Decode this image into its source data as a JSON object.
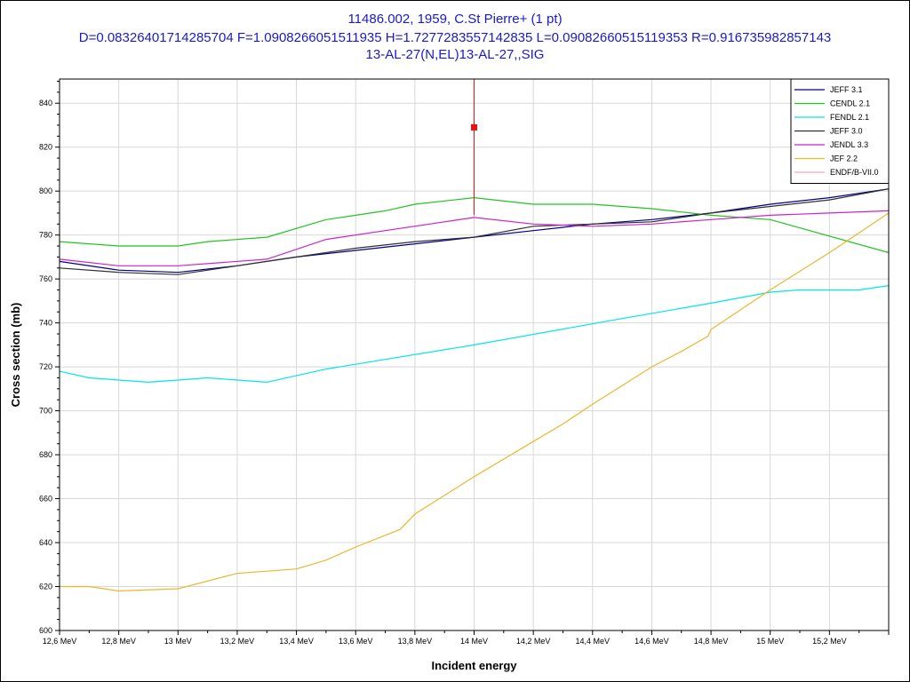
{
  "header": {
    "line1": "11486.002, 1959, C.St Pierre+ (1 pt)",
    "line2": "D=0.08326401714285704 F=1.0908266051511935 H=1.7277283557142835 L=0.09082660515119353 R=0.916735982857143",
    "line3": "13-AL-27(N,EL)13-AL-27,,SIG"
  },
  "chart_data": {
    "type": "line",
    "xlabel": "Incident energy",
    "ylabel": "Cross section (mb)",
    "xlim": [
      12.6,
      15.4
    ],
    "ylim": [
      600,
      851
    ],
    "grid": true,
    "legend_position": "top-right",
    "x_ticks": [
      {
        "value": 12.6,
        "label": "12,6 MeV"
      },
      {
        "value": 12.8,
        "label": "12,8 MeV"
      },
      {
        "value": 13.0,
        "label": "13 MeV"
      },
      {
        "value": 13.2,
        "label": "13,2 MeV"
      },
      {
        "value": 13.4,
        "label": "13,4 MeV"
      },
      {
        "value": 13.6,
        "label": "13,6 MeV"
      },
      {
        "value": 13.8,
        "label": "13,8 MeV"
      },
      {
        "value": 14.0,
        "label": "14 MeV"
      },
      {
        "value": 14.2,
        "label": "14,2 MeV"
      },
      {
        "value": 14.4,
        "label": "14,4 MeV"
      },
      {
        "value": 14.6,
        "label": "14,6 MeV"
      },
      {
        "value": 14.8,
        "label": "14,8 MeV"
      },
      {
        "value": 15.0,
        "label": "15 MeV"
      },
      {
        "value": 15.2,
        "label": "15,2 MeV"
      }
    ],
    "y_ticks": [
      {
        "value": 600,
        "label": "600"
      },
      {
        "value": 620,
        "label": "620"
      },
      {
        "value": 640,
        "label": "640"
      },
      {
        "value": 660,
        "label": "660"
      },
      {
        "value": 680,
        "label": "680"
      },
      {
        "value": 700,
        "label": "700"
      },
      {
        "value": 720,
        "label": "720"
      },
      {
        "value": 740,
        "label": "740"
      },
      {
        "value": 760,
        "label": "760"
      },
      {
        "value": 780,
        "label": "780"
      },
      {
        "value": 800,
        "label": "800"
      },
      {
        "value": 820,
        "label": "820"
      },
      {
        "value": 840,
        "label": "840"
      }
    ],
    "series": [
      {
        "name": "JEFF 3.1",
        "color": "#00008b",
        "x": [
          12.6,
          12.8,
          13.0,
          13.2,
          13.4,
          13.6,
          13.8,
          14.0,
          14.2,
          14.4,
          14.6,
          14.8,
          15.0,
          15.2,
          15.4
        ],
        "y": [
          768,
          764,
          763,
          766,
          770,
          773,
          776,
          779,
          782,
          785,
          787,
          790,
          794,
          797,
          801
        ]
      },
      {
        "name": "CENDL 2.1",
        "color": "#22c422",
        "x": [
          12.6,
          12.8,
          12.9,
          13.0,
          13.1,
          13.3,
          13.5,
          13.6,
          13.7,
          13.8,
          14.0,
          14.2,
          14.4,
          14.6,
          14.8,
          15.0,
          15.4
        ],
        "y": [
          777,
          775,
          775,
          775,
          777,
          779,
          787,
          789,
          791,
          794,
          797,
          794,
          794,
          792,
          789,
          787,
          772
        ]
      },
      {
        "name": "FENDL 2.1",
        "color": "#00e5e5",
        "x": [
          12.6,
          12.7,
          12.9,
          13.0,
          13.1,
          13.3,
          13.5,
          14.0,
          14.5,
          14.8,
          15.0,
          15.1,
          15.3,
          15.4
        ],
        "y": [
          718,
          715,
          713,
          714,
          715,
          713,
          719,
          730,
          742,
          749,
          754,
          755,
          755,
          757
        ]
      },
      {
        "name": "JEFF 3.0",
        "color": "#303030",
        "x": [
          12.6,
          12.8,
          13.0,
          13.2,
          13.4,
          13.6,
          13.8,
          14.0,
          14.2,
          14.4,
          14.6,
          14.8,
          15.0,
          15.2,
          15.4
        ],
        "y": [
          765,
          763,
          762,
          766,
          770,
          774,
          777,
          779,
          784,
          785,
          786,
          790,
          793,
          796,
          801
        ]
      },
      {
        "name": "JENDL 3.3",
        "color": "#cc22cc",
        "x": [
          12.6,
          12.8,
          13.0,
          13.3,
          13.5,
          13.7,
          13.9,
          14.0,
          14.2,
          14.4,
          14.6,
          14.8,
          15.0,
          15.2,
          15.4
        ],
        "y": [
          769,
          766,
          766,
          769,
          778,
          782,
          786,
          788,
          785,
          784,
          785,
          787,
          789,
          790,
          791
        ]
      },
      {
        "name": "JEF 2.2",
        "color": "#e8b830",
        "x": [
          12.6,
          12.7,
          12.8,
          13.0,
          13.2,
          13.4,
          13.5,
          13.6,
          13.75,
          13.8,
          14.0,
          14.2,
          14.3,
          14.4,
          14.6,
          14.7,
          14.79,
          14.8,
          15.0,
          15.2,
          15.4
        ],
        "y": [
          620,
          620,
          618,
          619,
          626,
          628,
          632,
          638,
          646,
          653,
          670,
          686,
          694,
          703,
          720,
          727,
          734,
          737,
          755,
          772,
          790
        ]
      },
      {
        "name": "ENDF/B-VII.0",
        "color": "#f4a8c0",
        "x": [],
        "y": []
      }
    ],
    "experimental_points": [
      {
        "x": 14.0,
        "y": 829,
        "y_err_low": 789,
        "y_err_high": 851,
        "color": "#ee1111"
      }
    ]
  }
}
